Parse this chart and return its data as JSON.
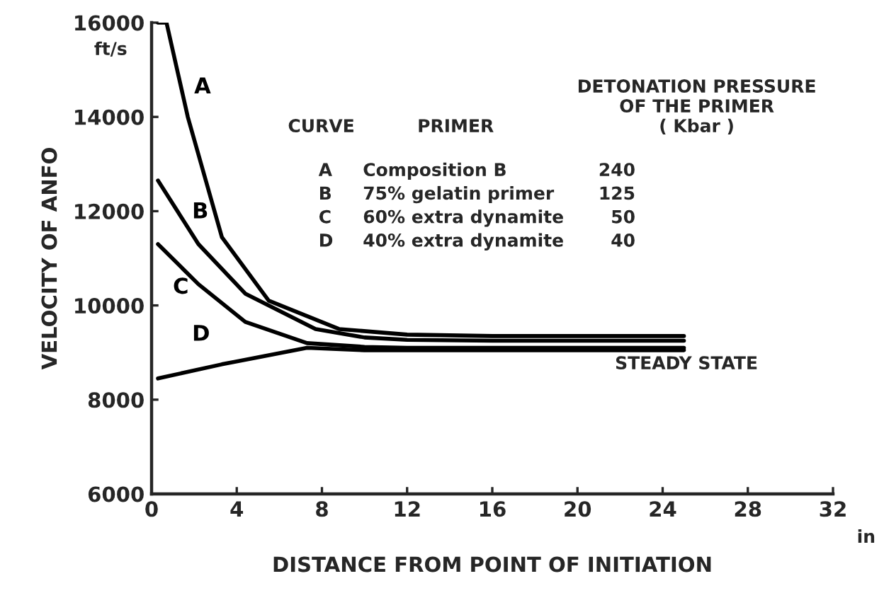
{
  "chart_data": {
    "type": "line",
    "xlabel": "DISTANCE FROM POINT OF INITIATION",
    "ylabel": "VELOCITY OF ANFO",
    "xlim": [
      0,
      32
    ],
    "xticks": [
      0,
      4,
      8,
      12,
      16,
      20,
      24,
      28,
      32
    ],
    "ylim": [
      6000,
      16000
    ],
    "yticks": [
      6000,
      8000,
      10000,
      12000,
      14000,
      16000
    ],
    "grid": false,
    "legend": false,
    "line_style": "solid",
    "marker": "none",
    "series": [
      {
        "name": "A",
        "color": "#000000",
        "x": [
          0.3,
          0.7,
          1.7,
          3.3,
          5.5,
          8.8,
          12,
          16,
          20,
          25
        ],
        "values": [
          16000,
          16000,
          14000,
          11450,
          10100,
          9500,
          9380,
          9350,
          9350,
          9350
        ]
      },
      {
        "name": "B",
        "color": "#000000",
        "x": [
          0.3,
          2.2,
          4.4,
          7.7,
          10,
          12,
          16,
          20,
          25
        ],
        "values": [
          12650,
          11300,
          10250,
          9500,
          9320,
          9270,
          9250,
          9250,
          9250
        ]
      },
      {
        "name": "C",
        "color": "#000000",
        "x": [
          0.3,
          2.2,
          4.4,
          7.3,
          10,
          12,
          16,
          20,
          25
        ],
        "values": [
          11300,
          10450,
          9650,
          9200,
          9120,
          9100,
          9100,
          9100,
          9100
        ]
      },
      {
        "name": "D",
        "color": "#000000",
        "x": [
          0.3,
          3.3,
          7.3,
          10,
          12,
          16,
          20,
          25
        ],
        "values": [
          8450,
          8750,
          9100,
          9050,
          9050,
          9050,
          9050,
          9050
        ]
      }
    ],
    "annotations": [
      "ft/s",
      "in",
      "CURVE",
      "PRIMER",
      "DETONATION PRESSURE\nOF THE PRIMER\n( Kbar )",
      "A",
      "Composition B",
      "240",
      "B",
      "75% gelatin primer",
      "125",
      "C",
      "60% extra dynamite",
      "50",
      "D",
      "40% extra dynamite",
      "40",
      "STEADY STATE"
    ]
  }
}
